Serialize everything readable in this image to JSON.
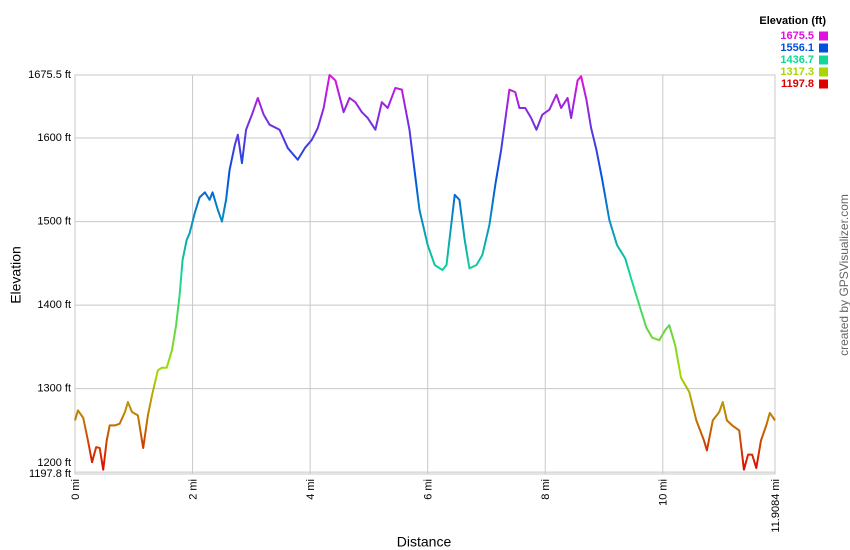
{
  "chart_data": {
    "type": "line",
    "x_label": "Distance",
    "y_label": "Elevation",
    "credit": "created by GPSVisualizer.com",
    "legend": {
      "title": "Elevation (ft)",
      "entries": [
        {
          "value": 1675.5,
          "color": "#e010e0"
        },
        {
          "value": 1556.1,
          "color": "#0050e0"
        },
        {
          "value": 1436.7,
          "color": "#10d898"
        },
        {
          "value": 1317.3,
          "color": "#a8d800"
        },
        {
          "value": 1197.8,
          "color": "#e00000"
        }
      ]
    },
    "grid": true,
    "xlim": [
      0,
      11.9084
    ],
    "ylim": [
      1197.8,
      1675.5
    ],
    "xticks": [
      {
        "value": 0,
        "label": "0 mi"
      },
      {
        "value": 2,
        "label": "2 mi"
      },
      {
        "value": 4,
        "label": "4 mi"
      },
      {
        "value": 6,
        "label": "6 mi"
      },
      {
        "value": 8,
        "label": "8 mi"
      },
      {
        "value": 10,
        "label": "10 mi"
      },
      {
        "value": 11.9084,
        "label": "11.9084 mi"
      }
    ],
    "yticks": [
      {
        "value": 1197.8,
        "label": "1197.8 ft"
      },
      {
        "value": 1200,
        "label": "1200 ft"
      },
      {
        "value": 1300,
        "label": "1300 ft"
      },
      {
        "value": 1400,
        "label": "1400 ft"
      },
      {
        "value": 1500,
        "label": "1500 ft"
      },
      {
        "value": 1600,
        "label": "1600 ft"
      },
      {
        "value": 1675.5,
        "label": "1675.5 ft"
      }
    ],
    "x": [
      0,
      0.05,
      0.14,
      0.22,
      0.29,
      0.36,
      0.42,
      0.48,
      0.54,
      0.59,
      0.68,
      0.76,
      0.85,
      0.9,
      0.97,
      1.07,
      1.16,
      1.24,
      1.31,
      1.41,
      1.48,
      1.56,
      1.65,
      1.72,
      1.78,
      1.83,
      1.9,
      1.95,
      2.04,
      2.12,
      2.21,
      2.29,
      2.34,
      2.43,
      2.5,
      2.57,
      2.63,
      2.72,
      2.77,
      2.84,
      2.91,
      3.01,
      3.11,
      3.21,
      3.31,
      3.48,
      3.62,
      3.79,
      3.91,
      4.03,
      4.13,
      4.23,
      4.33,
      4.43,
      4.57,
      4.67,
      4.77,
      4.88,
      4.98,
      5.11,
      5.22,
      5.32,
      5.45,
      5.56,
      5.69,
      5.86,
      6.0,
      6.12,
      6.25,
      6.32,
      6.4,
      6.46,
      6.54,
      6.63,
      6.71,
      6.83,
      6.93,
      7.05,
      7.15,
      7.25,
      7.39,
      7.49,
      7.56,
      7.66,
      7.76,
      7.85,
      7.95,
      8.07,
      8.19,
      8.27,
      8.38,
      8.44,
      8.55,
      8.61,
      8.7,
      8.78,
      8.87,
      8.97,
      9.09,
      9.22,
      9.36,
      9.46,
      9.6,
      9.72,
      9.82,
      9.94,
      10.04,
      10.11,
      10.21,
      10.31,
      10.45,
      10.57,
      10.7,
      10.75,
      10.85,
      10.96,
      11.02,
      11.09,
      11.18,
      11.3,
      11.38,
      11.45,
      11.52,
      11.59,
      11.67,
      11.76,
      11.82,
      11.9084
    ],
    "values": [
      1262,
      1274,
      1265,
      1238,
      1212,
      1230,
      1229,
      1203,
      1238,
      1256,
      1256,
      1258,
      1272,
      1284,
      1272,
      1268,
      1229,
      1268,
      1292,
      1322,
      1325,
      1325,
      1346,
      1376,
      1412,
      1454,
      1478,
      1486,
      1511,
      1529,
      1535,
      1526,
      1535,
      1514,
      1500,
      1526,
      1562,
      1592,
      1604,
      1570,
      1610,
      1628,
      1648,
      1628,
      1616,
      1610,
      1588,
      1574,
      1588,
      1598,
      1612,
      1636,
      1675.5,
      1669,
      1631,
      1648,
      1643,
      1631,
      1624,
      1610,
      1643,
      1636,
      1660,
      1658,
      1610,
      1514,
      1472,
      1448,
      1442,
      1448,
      1496,
      1532,
      1526,
      1478,
      1444,
      1448,
      1460,
      1496,
      1544,
      1586,
      1658,
      1655,
      1636,
      1636,
      1624,
      1610,
      1628,
      1634,
      1652,
      1636,
      1648,
      1624,
      1669,
      1674,
      1646,
      1612,
      1586,
      1550,
      1502,
      1472,
      1456,
      1432,
      1400,
      1373,
      1361,
      1358,
      1370,
      1376,
      1352,
      1313,
      1296,
      1262,
      1238,
      1226,
      1262,
      1272,
      1284,
      1262,
      1256,
      1250,
      1203,
      1221,
      1221,
      1205,
      1238,
      1256,
      1271,
      1262
    ]
  }
}
